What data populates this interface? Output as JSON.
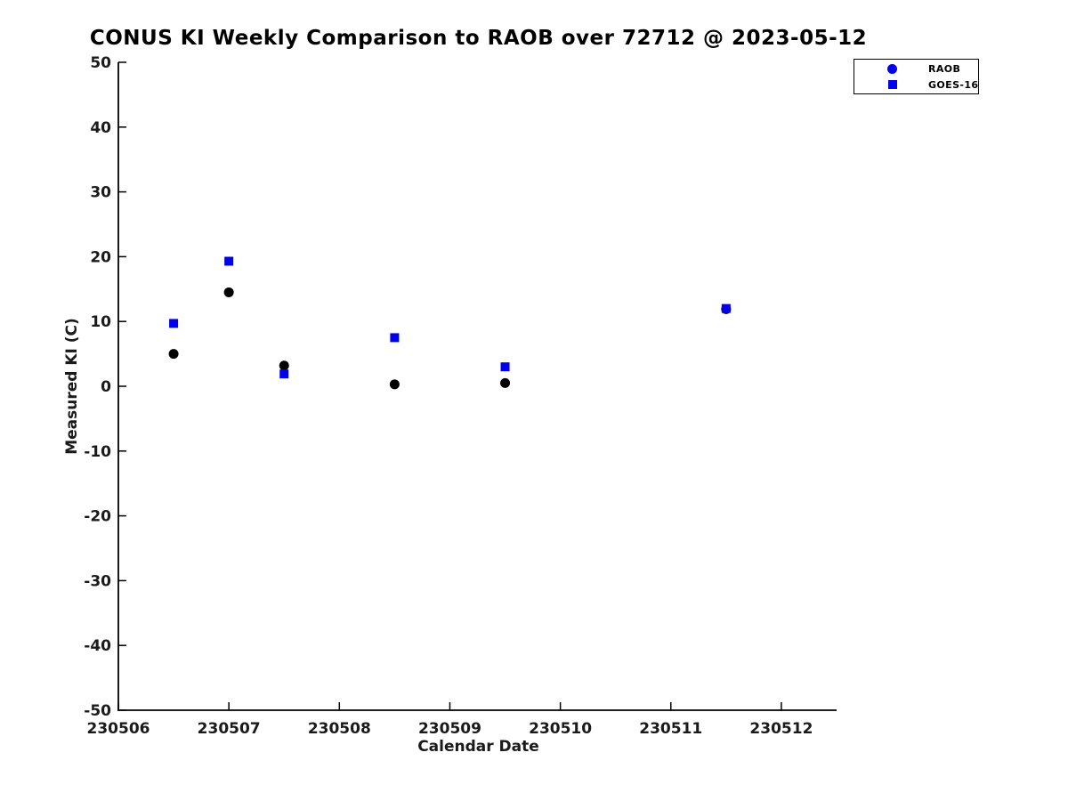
{
  "chart_data": {
    "type": "scatter",
    "title": "CONUS KI Weekly Comparison to RAOB over 72712 @ 2023-05-12",
    "xlabel": "Calendar Date",
    "ylabel": "Measured KI (C)",
    "xlim": [
      230506,
      230512.5
    ],
    "ylim": [
      -50,
      50
    ],
    "xticks": [
      230506,
      230507,
      230508,
      230509,
      230510,
      230511,
      230512
    ],
    "yticks": [
      -50,
      -40,
      -30,
      -20,
      -10,
      0,
      10,
      20,
      30,
      40,
      50
    ],
    "grid": false,
    "axis_box": false,
    "tick_direction": "in",
    "legend_position": "top-right-outside",
    "series": [
      {
        "name": "RAOB",
        "marker": "circle",
        "plot_color": "#000000",
        "legend_color": "#0000ee",
        "x": [
          230506.5,
          230507.0,
          230507.5,
          230508.5,
          230509.5,
          230511.5
        ],
        "y": [
          5.0,
          14.5,
          3.2,
          0.3,
          0.5,
          11.9
        ]
      },
      {
        "name": "GOES-16",
        "marker": "square",
        "plot_color": "#0000ee",
        "legend_color": "#0000ee",
        "x": [
          230506.5,
          230507.0,
          230507.5,
          230508.5,
          230509.5,
          230511.5
        ],
        "y": [
          9.7,
          19.3,
          1.9,
          7.5,
          3.0,
          12.0
        ]
      }
    ]
  }
}
